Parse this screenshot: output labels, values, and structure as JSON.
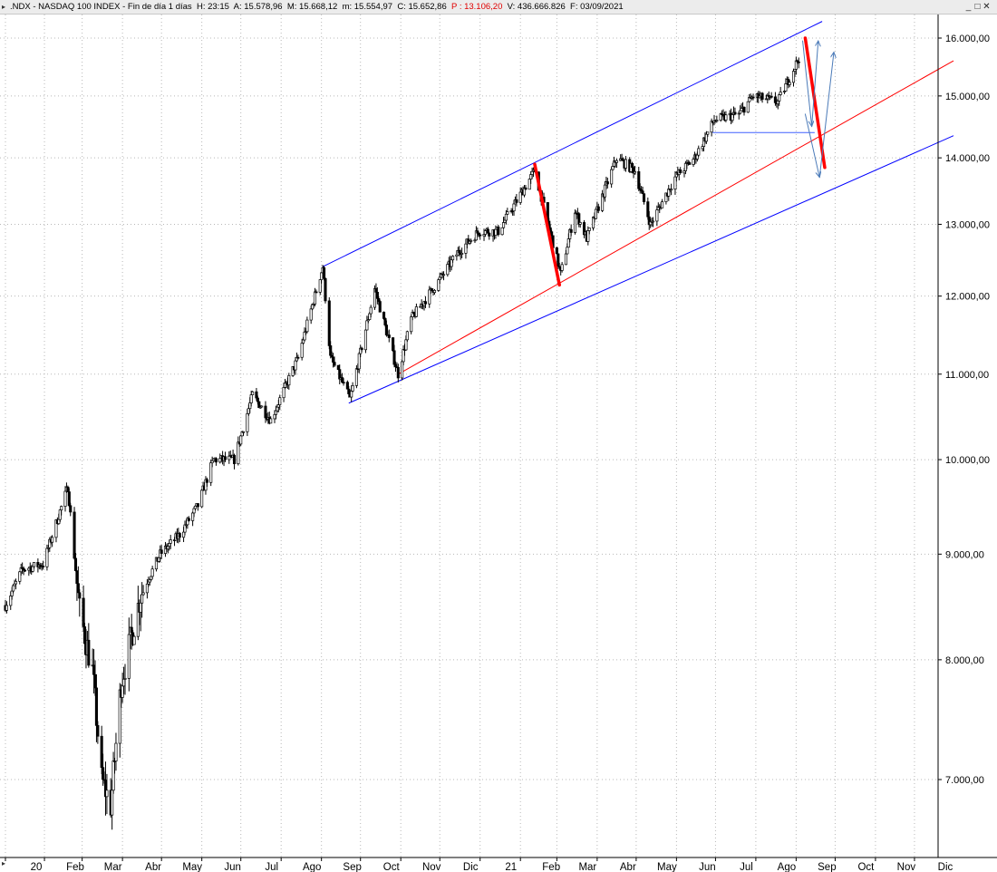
{
  "header": {
    "arrow": "▸",
    "symbol": ".NDX",
    "name": "NASDAQ 100 INDEX",
    "period": "Fin de día 1 días",
    "H": "H: 23:15",
    "A": "A: 15.578,96",
    "M": "M: 15.668,12",
    "m": "m: 15.554,97",
    "C": "C: 15.652,86",
    "P": "P : 13.106,20",
    "V": "V: 436.666.826",
    "F": "F: 03/09/2021",
    "window_buttons": [
      "_",
      "□",
      "✕"
    ]
  },
  "chart_data": {
    "type": "candlestick",
    "y_scale": "log",
    "ylim": [
      6700,
      16400
    ],
    "y_ticks": [
      7000,
      8000,
      9000,
      10000,
      11000,
      12000,
      13000,
      14000,
      15000,
      16000
    ],
    "y_tick_labels": [
      "7.000,00",
      "8.000,00",
      "9.000,00",
      "10.000,00",
      "11.000,00",
      "12.000,00",
      "13.000,00",
      "14.000,00",
      "15.000,00",
      "16.000,00"
    ],
    "x_labels": [
      "20",
      "Feb",
      "Mar",
      "Abr",
      "May",
      "Jun",
      "Jul",
      "Ago",
      "Sep",
      "Oct",
      "Nov",
      "Dic",
      "21",
      "Feb",
      "Mar",
      "Abr",
      "May",
      "Jun",
      "Jul",
      "Ago",
      "Sep",
      "Oct",
      "Nov",
      "Dic"
    ],
    "x_start": "2020-01-02",
    "x_end": "2021-12-31",
    "grid": true,
    "price_path": [
      [
        "2020-01-02",
        8500
      ],
      [
        "2020-01-15",
        8850
      ],
      [
        "2020-01-31",
        8900
      ],
      [
        "2020-02-19",
        9700
      ],
      [
        "2020-02-28",
        8450
      ],
      [
        "2020-03-09",
        7900
      ],
      [
        "2020-03-16",
        7000
      ],
      [
        "2020-03-23",
        6800
      ],
      [
        "2020-03-31",
        7800
      ],
      [
        "2020-04-15",
        8600
      ],
      [
        "2020-04-30",
        9000
      ],
      [
        "2020-05-15",
        9200
      ],
      [
        "2020-05-29",
        9500
      ],
      [
        "2020-06-10",
        10000
      ],
      [
        "2020-06-26",
        10000
      ],
      [
        "2020-07-10",
        10750
      ],
      [
        "2020-07-24",
        10450
      ],
      [
        "2020-08-14",
        11200
      ],
      [
        "2020-09-02",
        12400
      ],
      [
        "2020-09-08",
        11200
      ],
      [
        "2020-09-23",
        10700
      ],
      [
        "2020-10-12",
        12100
      ],
      [
        "2020-10-30",
        11000
      ],
      [
        "2020-11-09",
        11700
      ],
      [
        "2020-11-30",
        12200
      ],
      [
        "2020-12-15",
        12600
      ],
      [
        "2020-12-31",
        12900
      ],
      [
        "2021-01-15",
        12900
      ],
      [
        "2021-02-12",
        13800
      ],
      [
        "2021-03-04",
        12300
      ],
      [
        "2021-03-15",
        13200
      ],
      [
        "2021-03-24",
        12800
      ],
      [
        "2021-04-16",
        14000
      ],
      [
        "2021-04-30",
        13800
      ],
      [
        "2021-05-12",
        13000
      ],
      [
        "2021-05-31",
        13700
      ],
      [
        "2021-06-15",
        14000
      ],
      [
        "2021-06-30",
        14600
      ],
      [
        "2021-07-19",
        14700
      ],
      [
        "2021-07-30",
        15000
      ],
      [
        "2021-08-18",
        14900
      ],
      [
        "2021-08-31",
        15500
      ],
      [
        "2021-09-03",
        15650
      ]
    ],
    "channel_lines": [
      {
        "color": "#0000ff",
        "from": [
          "2020-09-02",
          12400
        ],
        "to": [
          "2021-09-21",
          16300
        ]
      },
      {
        "color": "#0000ff",
        "from": [
          "2020-09-22",
          10650
        ],
        "to": [
          "2021-12-31",
          14350
        ]
      },
      {
        "color": "#ff0000",
        "from": [
          "2020-10-30",
          11000
        ],
        "to": [
          "2021-12-31",
          15600
        ]
      }
    ],
    "annotations": [
      {
        "type": "line",
        "color": "#ff0000",
        "width": 3.5,
        "from": [
          "2021-02-12",
          13900
        ],
        "to": [
          "2021-03-03",
          12150
        ]
      },
      {
        "type": "line",
        "color": "#ff0000",
        "width": 3.5,
        "from": [
          "2021-09-08",
          16000
        ],
        "to": [
          "2021-09-23",
          13850
        ]
      },
      {
        "type": "line",
        "color": "#4060ff",
        "width": 1,
        "from": [
          "2021-06-29",
          14400
        ],
        "to": [
          "2021-09-15",
          14400
        ]
      },
      {
        "type": "arrow",
        "color": "#4a7ab8",
        "from": [
          "2021-09-06",
          15950
        ],
        "to": [
          "2021-09-13",
          14500
        ]
      },
      {
        "type": "arrow",
        "color": "#4a7ab8",
        "from": [
          "2021-09-13",
          14500
        ],
        "to": [
          "2021-09-18",
          15950
        ]
      },
      {
        "type": "arrow",
        "color": "#4a7ab8",
        "from": [
          "2021-09-08",
          14700
        ],
        "to": [
          "2021-09-19",
          13700
        ]
      },
      {
        "type": "arrow",
        "color": "#4a7ab8",
        "from": [
          "2021-09-19",
          13700
        ],
        "to": [
          "2021-09-30",
          15750
        ]
      }
    ]
  }
}
